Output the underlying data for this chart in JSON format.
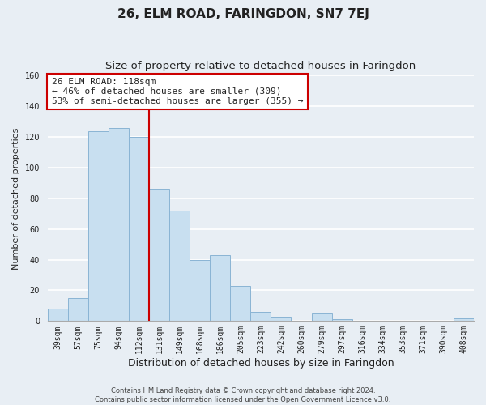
{
  "title": "26, ELM ROAD, FARINGDON, SN7 7EJ",
  "subtitle": "Size of property relative to detached houses in Faringdon",
  "xlabel": "Distribution of detached houses by size in Faringdon",
  "ylabel": "Number of detached properties",
  "bar_labels": [
    "39sqm",
    "57sqm",
    "75sqm",
    "94sqm",
    "112sqm",
    "131sqm",
    "149sqm",
    "168sqm",
    "186sqm",
    "205sqm",
    "223sqm",
    "242sqm",
    "260sqm",
    "279sqm",
    "297sqm",
    "316sqm",
    "334sqm",
    "353sqm",
    "371sqm",
    "390sqm",
    "408sqm"
  ],
  "bar_values": [
    8,
    15,
    124,
    126,
    120,
    86,
    72,
    40,
    43,
    23,
    6,
    3,
    0,
    5,
    1,
    0,
    0,
    0,
    0,
    0,
    2
  ],
  "bar_color": "#c8dff0",
  "bar_edge_color": "#8ab4d4",
  "vline_x": 4.5,
  "vline_color": "#cc0000",
  "annotation_title": "26 ELM ROAD: 118sqm",
  "annotation_line1": "← 46% of detached houses are smaller (309)",
  "annotation_line2": "53% of semi-detached houses are larger (355) →",
  "annotation_box_color": "#ffffff",
  "annotation_box_edge": "#cc0000",
  "ylim": [
    0,
    160
  ],
  "footer1": "Contains HM Land Registry data © Crown copyright and database right 2024.",
  "footer2": "Contains public sector information licensed under the Open Government Licence v3.0.",
  "background_color": "#e8eef4",
  "plot_bg_color": "#e8eef4",
  "grid_color": "#ffffff",
  "title_fontsize": 11,
  "subtitle_fontsize": 9.5,
  "tick_fontsize": 7,
  "ylabel_fontsize": 8,
  "xlabel_fontsize": 9
}
